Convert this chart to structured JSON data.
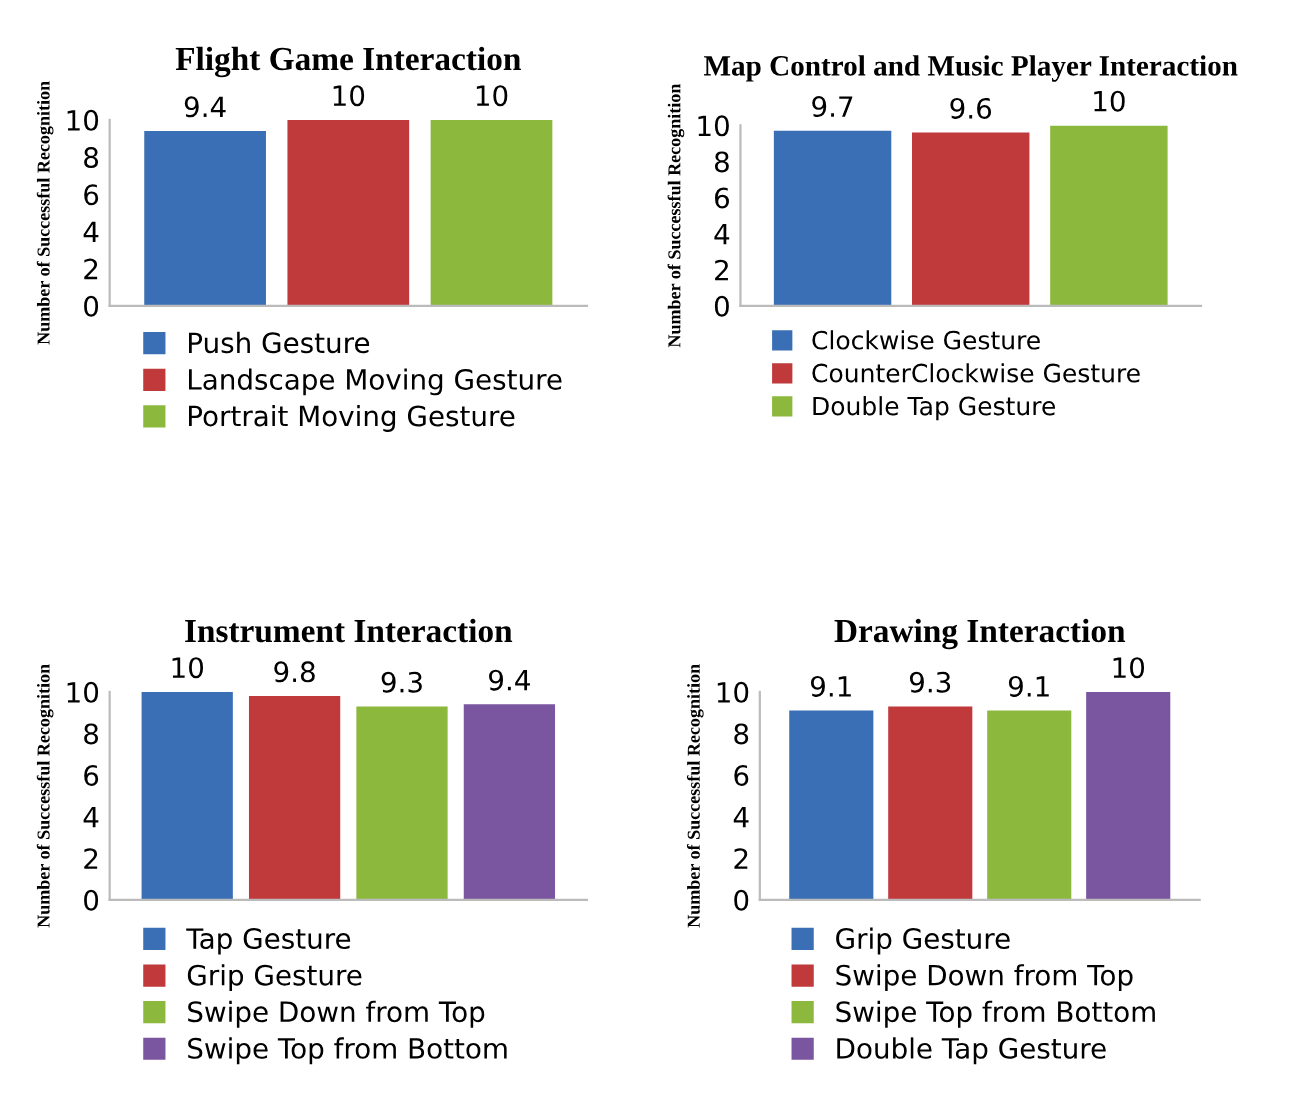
{
  "chart_data": [
    {
      "type": "bar",
      "title": "Flight Game Interaction",
      "ylabel": "Number of Successful Recognition",
      "categories": [
        null
      ],
      "ylim": [
        0,
        10
      ],
      "yticks": [
        0,
        2,
        4,
        6,
        8,
        10
      ],
      "data_labels": true,
      "legend": "bottom",
      "series": [
        {
          "name": "Push Gesture",
          "color": "#3a6fb5",
          "values": [
            9.4
          ]
        },
        {
          "name": "Landscape Moving Gesture",
          "color": "#c0393b",
          "values": [
            10
          ]
        },
        {
          "name": "Portrait Moving Gesture",
          "color": "#8cb83d",
          "values": [
            10
          ]
        }
      ]
    },
    {
      "type": "bar",
      "title": "Map Control and Music Player Interaction",
      "ylabel": "Number of Successful Recognition",
      "categories": [
        null
      ],
      "ylim": [
        0,
        10
      ],
      "yticks": [
        0,
        2,
        4,
        6,
        8,
        10
      ],
      "data_labels": true,
      "legend": "bottom",
      "series": [
        {
          "name": "Clockwise Gesture",
          "color": "#3a6fb5",
          "values": [
            9.7
          ]
        },
        {
          "name": "CounterClockwise Gesture",
          "color": "#c0393b",
          "values": [
            9.6
          ]
        },
        {
          "name": "Double Tap Gesture",
          "color": "#8cb83d",
          "values": [
            10
          ]
        }
      ]
    },
    {
      "type": "bar",
      "title": "Instrument Interaction",
      "ylabel": "Number of Successful Recognition",
      "categories": [
        null
      ],
      "ylim": [
        0,
        10
      ],
      "yticks": [
        0,
        2,
        4,
        6,
        8,
        10
      ],
      "data_labels": true,
      "legend": "bottom",
      "series": [
        {
          "name": "Tap Gesture",
          "color": "#3a6fb5",
          "values": [
            10
          ]
        },
        {
          "name": "Grip Gesture",
          "color": "#c0393b",
          "values": [
            9.8
          ]
        },
        {
          "name": "Swipe Down from Top",
          "color": "#8cb83d",
          "values": [
            9.3
          ]
        },
        {
          "name": "Swipe Top from Bottom",
          "color": "#7a56a0",
          "values": [
            9.4
          ]
        }
      ]
    },
    {
      "type": "bar",
      "title": "Drawing Interaction",
      "ylabel": "Number of Successful Recognition",
      "categories": [
        null
      ],
      "ylim": [
        0,
        10
      ],
      "yticks": [
        0,
        2,
        4,
        6,
        8,
        10
      ],
      "data_labels": true,
      "legend": "bottom",
      "series": [
        {
          "name": "Grip Gesture",
          "color": "#3a6fb5",
          "values": [
            9.1
          ]
        },
        {
          "name": "Swipe Down from Top",
          "color": "#c0393b",
          "values": [
            9.3
          ]
        },
        {
          "name": "Swipe Top from Bottom",
          "color": "#8cb83d",
          "values": [
            9.1
          ]
        },
        {
          "name": "Double Tap Gesture",
          "color": "#7a56a0",
          "values": [
            10
          ]
        }
      ]
    }
  ]
}
